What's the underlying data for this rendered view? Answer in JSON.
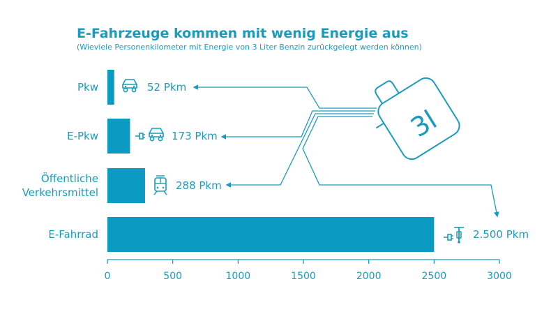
{
  "chart_data": {
    "type": "bar",
    "orientation": "horizontal",
    "title": "E-Fahrzeuge kommen mit wenig Energie aus",
    "subtitle": "(Wieviele Personenkilometer mit Energie von 3 Liter Benzin zurückgelegt werden können)",
    "categories": [
      {
        "lines": [
          "Pkw"
        ],
        "icon": "car-icon"
      },
      {
        "lines": [
          "E-Pkw"
        ],
        "icon": "electric-car-icon"
      },
      {
        "lines": [
          "Öffentliche",
          "Verkehrsmittel"
        ],
        "icon": "train-icon"
      },
      {
        "lines": [
          "E-Fahrrad"
        ],
        "icon": "electric-bike-icon"
      }
    ],
    "values": [
      52,
      173,
      288,
      2500
    ],
    "value_labels": [
      "52 Pkm",
      "173 Pkm",
      "288 Pkm",
      "2.500 Pkm"
    ],
    "xlim": [
      0,
      3000
    ],
    "xticks": [
      "0",
      "500",
      "1000",
      "1500",
      "2000",
      "2500",
      "3000"
    ],
    "grid": false,
    "annotation": {
      "canister_label": "3l",
      "icon": "fuel-canister-icon"
    },
    "colors": {
      "accent": "#1a9bbd",
      "bar": "#0a9ac2"
    }
  }
}
